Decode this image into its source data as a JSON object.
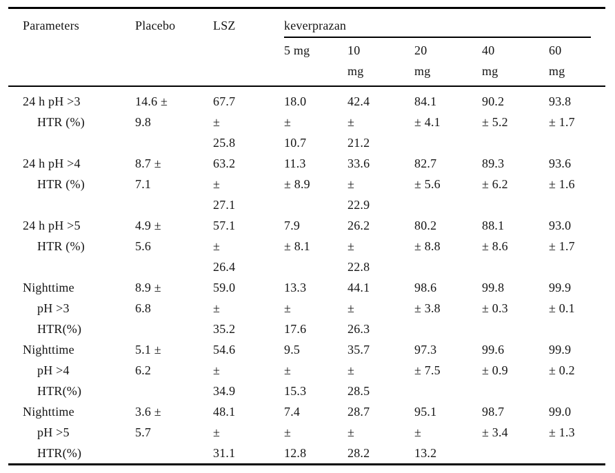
{
  "colors": {
    "background": "#ffffff",
    "text": "#141414",
    "rule": "#000000"
  },
  "table": {
    "header": {
      "parameters": "Parameters",
      "placebo": "Placebo",
      "lsz": "LSZ",
      "group": "keverprazan",
      "doses": [
        [
          "5 mg"
        ],
        [
          "10",
          "mg"
        ],
        [
          "20",
          "mg"
        ],
        [
          "40",
          "mg"
        ],
        [
          "60",
          "mg"
        ]
      ]
    },
    "rows": [
      {
        "parameter_lines": [
          "24 h pH >3",
          "HTR (%)"
        ],
        "cells": [
          [
            "14.6 ±",
            "9.8"
          ],
          [
            "67.7",
            "±",
            "25.8"
          ],
          [
            "18.0",
            "±",
            "10.7"
          ],
          [
            "42.4",
            "±",
            "21.2"
          ],
          [
            "84.1",
            "± 4.1"
          ],
          [
            "90.2",
            "± 5.2"
          ],
          [
            "93.8",
            "± 1.7"
          ]
        ]
      },
      {
        "parameter_lines": [
          "24 h pH >4",
          "HTR (%)"
        ],
        "cells": [
          [
            "8.7 ±",
            "7.1"
          ],
          [
            "63.2",
            "±",
            "27.1"
          ],
          [
            "11.3",
            "± 8.9"
          ],
          [
            "33.6",
            "±",
            "22.9"
          ],
          [
            "82.7",
            "± 5.6"
          ],
          [
            "89.3",
            "± 6.2"
          ],
          [
            "93.6",
            "± 1.6"
          ]
        ]
      },
      {
        "parameter_lines": [
          "24 h pH >5",
          "HTR (%)"
        ],
        "cells": [
          [
            "4.9 ±",
            "5.6"
          ],
          [
            "57.1",
            "±",
            "26.4"
          ],
          [
            "7.9",
            "± 8.1"
          ],
          [
            "26.2",
            "±",
            "22.8"
          ],
          [
            "80.2",
            "± 8.8"
          ],
          [
            "88.1",
            "± 8.6"
          ],
          [
            "93.0",
            "± 1.7"
          ]
        ]
      },
      {
        "parameter_lines": [
          "Nighttime",
          "pH >3",
          "HTR(%)"
        ],
        "cells": [
          [
            "8.9 ±",
            "6.8"
          ],
          [
            "59.0",
            "±",
            "35.2"
          ],
          [
            "13.3",
            "±",
            "17.6"
          ],
          [
            "44.1",
            "±",
            "26.3"
          ],
          [
            "98.6",
            "± 3.8"
          ],
          [
            "99.8",
            "± 0.3"
          ],
          [
            "99.9",
            "± 0.1"
          ]
        ]
      },
      {
        "parameter_lines": [
          "Nighttime",
          "pH >4",
          "HTR(%)"
        ],
        "cells": [
          [
            "5.1 ±",
            "6.2"
          ],
          [
            "54.6",
            "±",
            "34.9"
          ],
          [
            "9.5",
            "±",
            "15.3"
          ],
          [
            "35.7",
            "±",
            "28.5"
          ],
          [
            "97.3",
            "± 7.5"
          ],
          [
            "99.6",
            "± 0.9"
          ],
          [
            "99.9",
            "± 0.2"
          ]
        ]
      },
      {
        "parameter_lines": [
          "Nighttime",
          "pH >5",
          "HTR(%)"
        ],
        "cells": [
          [
            "3.6 ±",
            "5.7"
          ],
          [
            "48.1",
            "±",
            "31.1"
          ],
          [
            "7.4",
            "±",
            "12.8"
          ],
          [
            "28.7",
            "±",
            "28.2"
          ],
          [
            "95.1",
            "±",
            "13.2"
          ],
          [
            "98.7",
            "± 3.4"
          ],
          [
            "99.0",
            "± 1.3"
          ]
        ]
      }
    ]
  },
  "chart_data": {
    "type": "table",
    "columns": [
      "Parameters",
      "Placebo",
      "LSZ",
      "keverprazan 5 mg",
      "keverprazan 10 mg",
      "keverprazan 20 mg",
      "keverprazan 40 mg",
      "keverprazan 60 mg"
    ],
    "rows": [
      [
        "24 h pH >3 HTR (%)",
        "14.6 ± 9.8",
        "67.7 ± 25.8",
        "18.0 ± 10.7",
        "42.4 ± 21.2",
        "84.1 ± 4.1",
        "90.2 ± 5.2",
        "93.8 ± 1.7"
      ],
      [
        "24 h pH >4 HTR (%)",
        "8.7 ± 7.1",
        "63.2 ± 27.1",
        "11.3 ± 8.9",
        "33.6 ± 22.9",
        "82.7 ± 5.6",
        "89.3 ± 6.2",
        "93.6 ± 1.6"
      ],
      [
        "24 h pH >5 HTR (%)",
        "4.9 ± 5.6",
        "57.1 ± 26.4",
        "7.9 ± 8.1",
        "26.2 ± 22.8",
        "80.2 ± 8.8",
        "88.1 ± 8.6",
        "93.0 ± 1.7"
      ],
      [
        "Nighttime pH >3 HTR(%)",
        "8.9 ± 6.8",
        "59.0 ± 35.2",
        "13.3 ± 17.6",
        "44.1 ± 26.3",
        "98.6 ± 3.8",
        "99.8 ± 0.3",
        "99.9 ± 0.1"
      ],
      [
        "Nighttime pH >4 HTR(%)",
        "5.1 ± 6.2",
        "54.6 ± 34.9",
        "9.5 ± 15.3",
        "35.7 ± 28.5",
        "97.3 ± 7.5",
        "99.6 ± 0.9",
        "99.9 ± 0.2"
      ],
      [
        "Nighttime pH >5 HTR(%)",
        "3.6 ± 5.7",
        "48.1 ± 31.1",
        "7.4 ± 12.8",
        "28.7 ± 28.2",
        "95.1 ± 13.2",
        "98.7 ± 3.4",
        "99.0 ± 1.3"
      ]
    ]
  }
}
